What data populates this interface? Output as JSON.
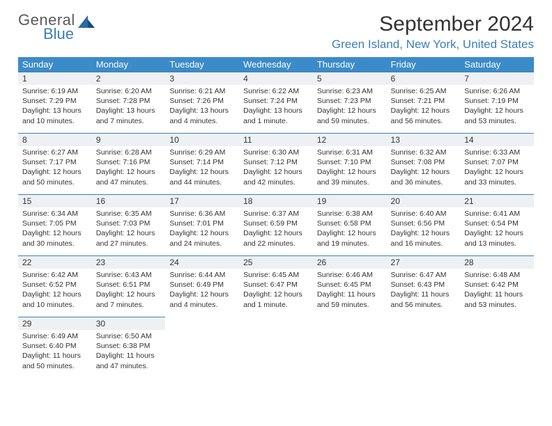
{
  "logo": {
    "top": "General",
    "bottom": "Blue"
  },
  "title": "September 2024",
  "subtitle": "Green Island, New York, United States",
  "colors": {
    "header_bg": "#3b8bc9",
    "header_fg": "#ffffff",
    "accent": "#3b7fb8",
    "daynum_bg": "#eef1f3",
    "text": "#333333",
    "page_bg": "#ffffff"
  },
  "weekdays": [
    "Sunday",
    "Monday",
    "Tuesday",
    "Wednesday",
    "Thursday",
    "Friday",
    "Saturday"
  ],
  "weeks": [
    [
      {
        "n": "1",
        "sunrise": "Sunrise: 6:19 AM",
        "sunset": "Sunset: 7:29 PM",
        "daylight": "Daylight: 13 hours and 10 minutes."
      },
      {
        "n": "2",
        "sunrise": "Sunrise: 6:20 AM",
        "sunset": "Sunset: 7:28 PM",
        "daylight": "Daylight: 13 hours and 7 minutes."
      },
      {
        "n": "3",
        "sunrise": "Sunrise: 6:21 AM",
        "sunset": "Sunset: 7:26 PM",
        "daylight": "Daylight: 13 hours and 4 minutes."
      },
      {
        "n": "4",
        "sunrise": "Sunrise: 6:22 AM",
        "sunset": "Sunset: 7:24 PM",
        "daylight": "Daylight: 13 hours and 1 minute."
      },
      {
        "n": "5",
        "sunrise": "Sunrise: 6:23 AM",
        "sunset": "Sunset: 7:23 PM",
        "daylight": "Daylight: 12 hours and 59 minutes."
      },
      {
        "n": "6",
        "sunrise": "Sunrise: 6:25 AM",
        "sunset": "Sunset: 7:21 PM",
        "daylight": "Daylight: 12 hours and 56 minutes."
      },
      {
        "n": "7",
        "sunrise": "Sunrise: 6:26 AM",
        "sunset": "Sunset: 7:19 PM",
        "daylight": "Daylight: 12 hours and 53 minutes."
      }
    ],
    [
      {
        "n": "8",
        "sunrise": "Sunrise: 6:27 AM",
        "sunset": "Sunset: 7:17 PM",
        "daylight": "Daylight: 12 hours and 50 minutes."
      },
      {
        "n": "9",
        "sunrise": "Sunrise: 6:28 AM",
        "sunset": "Sunset: 7:16 PM",
        "daylight": "Daylight: 12 hours and 47 minutes."
      },
      {
        "n": "10",
        "sunrise": "Sunrise: 6:29 AM",
        "sunset": "Sunset: 7:14 PM",
        "daylight": "Daylight: 12 hours and 44 minutes."
      },
      {
        "n": "11",
        "sunrise": "Sunrise: 6:30 AM",
        "sunset": "Sunset: 7:12 PM",
        "daylight": "Daylight: 12 hours and 42 minutes."
      },
      {
        "n": "12",
        "sunrise": "Sunrise: 6:31 AM",
        "sunset": "Sunset: 7:10 PM",
        "daylight": "Daylight: 12 hours and 39 minutes."
      },
      {
        "n": "13",
        "sunrise": "Sunrise: 6:32 AM",
        "sunset": "Sunset: 7:08 PM",
        "daylight": "Daylight: 12 hours and 36 minutes."
      },
      {
        "n": "14",
        "sunrise": "Sunrise: 6:33 AM",
        "sunset": "Sunset: 7:07 PM",
        "daylight": "Daylight: 12 hours and 33 minutes."
      }
    ],
    [
      {
        "n": "15",
        "sunrise": "Sunrise: 6:34 AM",
        "sunset": "Sunset: 7:05 PM",
        "daylight": "Daylight: 12 hours and 30 minutes."
      },
      {
        "n": "16",
        "sunrise": "Sunrise: 6:35 AM",
        "sunset": "Sunset: 7:03 PM",
        "daylight": "Daylight: 12 hours and 27 minutes."
      },
      {
        "n": "17",
        "sunrise": "Sunrise: 6:36 AM",
        "sunset": "Sunset: 7:01 PM",
        "daylight": "Daylight: 12 hours and 24 minutes."
      },
      {
        "n": "18",
        "sunrise": "Sunrise: 6:37 AM",
        "sunset": "Sunset: 6:59 PM",
        "daylight": "Daylight: 12 hours and 22 minutes."
      },
      {
        "n": "19",
        "sunrise": "Sunrise: 6:38 AM",
        "sunset": "Sunset: 6:58 PM",
        "daylight": "Daylight: 12 hours and 19 minutes."
      },
      {
        "n": "20",
        "sunrise": "Sunrise: 6:40 AM",
        "sunset": "Sunset: 6:56 PM",
        "daylight": "Daylight: 12 hours and 16 minutes."
      },
      {
        "n": "21",
        "sunrise": "Sunrise: 6:41 AM",
        "sunset": "Sunset: 6:54 PM",
        "daylight": "Daylight: 12 hours and 13 minutes."
      }
    ],
    [
      {
        "n": "22",
        "sunrise": "Sunrise: 6:42 AM",
        "sunset": "Sunset: 6:52 PM",
        "daylight": "Daylight: 12 hours and 10 minutes."
      },
      {
        "n": "23",
        "sunrise": "Sunrise: 6:43 AM",
        "sunset": "Sunset: 6:51 PM",
        "daylight": "Daylight: 12 hours and 7 minutes."
      },
      {
        "n": "24",
        "sunrise": "Sunrise: 6:44 AM",
        "sunset": "Sunset: 6:49 PM",
        "daylight": "Daylight: 12 hours and 4 minutes."
      },
      {
        "n": "25",
        "sunrise": "Sunrise: 6:45 AM",
        "sunset": "Sunset: 6:47 PM",
        "daylight": "Daylight: 12 hours and 1 minute."
      },
      {
        "n": "26",
        "sunrise": "Sunrise: 6:46 AM",
        "sunset": "Sunset: 6:45 PM",
        "daylight": "Daylight: 11 hours and 59 minutes."
      },
      {
        "n": "27",
        "sunrise": "Sunrise: 6:47 AM",
        "sunset": "Sunset: 6:43 PM",
        "daylight": "Daylight: 11 hours and 56 minutes."
      },
      {
        "n": "28",
        "sunrise": "Sunrise: 6:48 AM",
        "sunset": "Sunset: 6:42 PM",
        "daylight": "Daylight: 11 hours and 53 minutes."
      }
    ],
    [
      {
        "n": "29",
        "sunrise": "Sunrise: 6:49 AM",
        "sunset": "Sunset: 6:40 PM",
        "daylight": "Daylight: 11 hours and 50 minutes."
      },
      {
        "n": "30",
        "sunrise": "Sunrise: 6:50 AM",
        "sunset": "Sunset: 6:38 PM",
        "daylight": "Daylight: 11 hours and 47 minutes."
      },
      null,
      null,
      null,
      null,
      null
    ]
  ]
}
